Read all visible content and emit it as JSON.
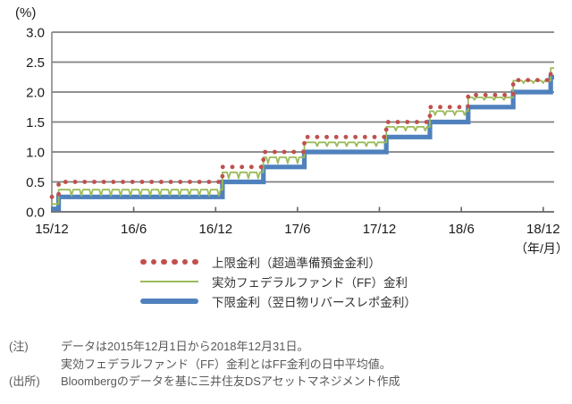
{
  "chart_data": {
    "type": "line",
    "title": "",
    "y_unit": "(%)",
    "x_unit": "（年/月）",
    "ylim": [
      0,
      3.0
    ],
    "ytick_step": 0.5,
    "yticks": [
      "0.0",
      "0.5",
      "1.0",
      "1.5",
      "2.0",
      "2.5",
      "3.0"
    ],
    "x_months_max": 36.8,
    "xticks": [
      [
        0,
        "15/12"
      ],
      [
        6,
        "16/6"
      ],
      [
        12,
        "16/12"
      ],
      [
        18,
        "17/6"
      ],
      [
        24,
        "17/12"
      ],
      [
        30,
        "18/6"
      ],
      [
        36,
        "18/12"
      ]
    ],
    "grid": true,
    "legend_position": "bottom",
    "colors": {
      "upper": "#C0504D",
      "effective": "#9BBB59",
      "lower": "#4F81BD",
      "grid": "#808080",
      "axis": "#666666"
    },
    "series": [
      {
        "name": "上限金利（超過準備預金金利）",
        "style": "dotted",
        "color_key": "upper",
        "steps_month_pct": [
          [
            0,
            0.25
          ],
          [
            0.5,
            0.5
          ],
          [
            12.5,
            0.75
          ],
          [
            15.5,
            1.0
          ],
          [
            18.5,
            1.25
          ],
          [
            24.5,
            1.5
          ],
          [
            27.7,
            1.75
          ],
          [
            30.5,
            1.95
          ],
          [
            33.8,
            2.2
          ],
          [
            36.55,
            2.4
          ]
        ]
      },
      {
        "name": "実効フェデラルファンド（FF）金利",
        "style": "thin-line",
        "color_key": "effective",
        "steps_month_pct": [
          [
            0,
            0.13
          ],
          [
            0.5,
            0.37
          ],
          [
            12.5,
            0.66
          ],
          [
            15.5,
            0.91
          ],
          [
            18.5,
            1.16
          ],
          [
            24.5,
            1.42
          ],
          [
            27.7,
            1.68
          ],
          [
            30.5,
            1.91
          ],
          [
            33.8,
            2.19
          ],
          [
            36.55,
            2.4
          ]
        ],
        "monthly_dips": {
          "interval": 0.72,
          "half_width": 0.12,
          "depths": [
            [
              18.5,
              0.1
            ],
            [
              30.5,
              0.065
            ],
            [
              40,
              0.04
            ]
          ]
        }
      },
      {
        "name": "下限金利（翌日物リバースレポ金利）",
        "style": "thick-line",
        "color_key": "lower",
        "steps_month_pct": [
          [
            0,
            0.05
          ],
          [
            0.5,
            0.25
          ],
          [
            12.5,
            0.5
          ],
          [
            15.5,
            0.75
          ],
          [
            18.5,
            1.0
          ],
          [
            24.5,
            1.25
          ],
          [
            27.7,
            1.5
          ],
          [
            30.5,
            1.75
          ],
          [
            33.8,
            2.0
          ],
          [
            36.55,
            2.25
          ]
        ]
      }
    ]
  },
  "legend": {
    "items": [
      {
        "label": "上限金利（超過準備預金金利）",
        "marker": "red-dots"
      },
      {
        "label": "実効フェデラルファンド（FF）金利",
        "marker": "green-thin-line"
      },
      {
        "label": "下限金利（翌日物リバースレポ金利）",
        "marker": "blue-thick-line"
      }
    ]
  },
  "notes": {
    "note_label": "(注)",
    "note_lines": [
      "データは2015年12月1日から2018年12月31日。",
      "実効フェデラルファンド（FF）金利とはFF金利の日中平均値。"
    ],
    "source_label": "(出所)",
    "source_line": "Bloombergのデータを基に三井住友DSアセットマネジメント作成"
  }
}
